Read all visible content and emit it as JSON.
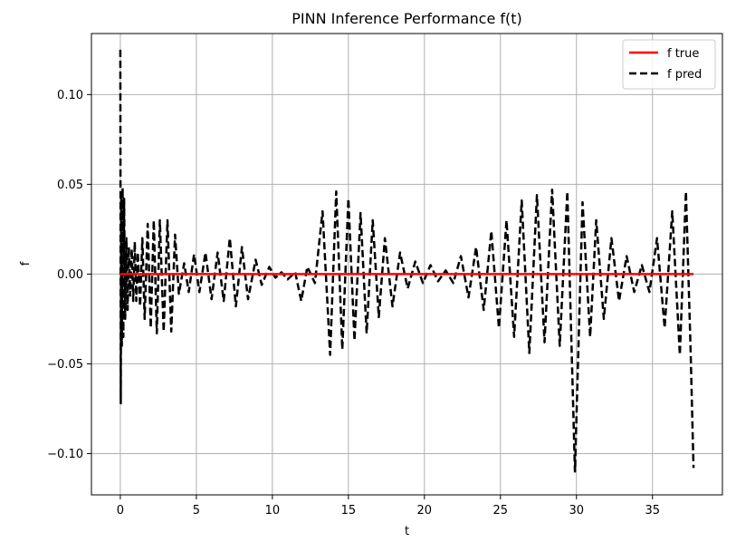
{
  "chart_data": {
    "type": "line",
    "title": "PINN Inference Performance f(t)",
    "xlabel": "t",
    "ylabel": "f",
    "xlim": [
      -1.9,
      39.6
    ],
    "ylim": [
      -0.123,
      0.134
    ],
    "xticks": [
      0,
      5,
      10,
      15,
      20,
      25,
      30,
      35
    ],
    "xtick_labels": [
      "0",
      "5",
      "10",
      "15",
      "20",
      "25",
      "30",
      "35"
    ],
    "yticks": [
      -0.1,
      -0.05,
      0.0,
      0.05,
      0.1
    ],
    "ytick_labels": [
      "−0.10",
      "−0.05",
      "0.00",
      "0.05",
      "0.10"
    ],
    "grid": true,
    "legend_position": "top-right",
    "series": [
      {
        "name": "f true",
        "color": "#ff0000",
        "style": "solid",
        "x": [
          0,
          37.7
        ],
        "y": [
          0,
          0
        ]
      },
      {
        "name": "f pred",
        "color": "#000000",
        "style": "dashed",
        "x": [
          0,
          0.03,
          0.06,
          0.1,
          0.15,
          0.2,
          0.25,
          0.32,
          0.4,
          0.48,
          0.56,
          0.65,
          0.75,
          0.85,
          0.95,
          1.05,
          1.15,
          1.3,
          1.45,
          1.6,
          1.8,
          2.0,
          2.2,
          2.4,
          2.6,
          2.85,
          3.1,
          3.35,
          3.6,
          3.85,
          4.2,
          4.5,
          4.85,
          5.2,
          5.6,
          6.0,
          6.4,
          6.8,
          7.2,
          7.6,
          8.0,
          8.4,
          8.9,
          9.3,
          9.8,
          10.2,
          10.6,
          11.0,
          11.5,
          11.9,
          12.3,
          12.8,
          13.3,
          13.8,
          14.2,
          14.6,
          15.0,
          15.4,
          15.8,
          16.2,
          16.6,
          17.0,
          17.4,
          17.9,
          18.4,
          18.9,
          19.4,
          19.9,
          20.4,
          20.9,
          21.4,
          21.9,
          22.4,
          22.9,
          23.4,
          23.9,
          24.4,
          24.9,
          25.4,
          25.9,
          26.4,
          26.9,
          27.4,
          27.9,
          28.4,
          28.9,
          29.4,
          29.9,
          30.4,
          30.9,
          31.3,
          31.8,
          32.3,
          32.8,
          33.3,
          33.8,
          34.3,
          34.8,
          35.3,
          35.8,
          36.3,
          36.8,
          37.2,
          37.5,
          37.7
        ],
        "y": [
          0.125,
          -0.072,
          0.046,
          -0.04,
          0.048,
          -0.035,
          0.042,
          -0.025,
          0.02,
          -0.02,
          0.015,
          -0.012,
          0.014,
          -0.015,
          0.018,
          -0.015,
          0.012,
          -0.018,
          0.02,
          -0.025,
          0.028,
          -0.03,
          0.03,
          -0.033,
          0.03,
          -0.032,
          0.03,
          -0.032,
          0.022,
          -0.011,
          0.006,
          -0.01,
          0.011,
          -0.01,
          0.012,
          -0.014,
          0.012,
          -0.015,
          0.02,
          -0.018,
          0.015,
          -0.014,
          0.008,
          -0.006,
          0.004,
          -0.002,
          0.001,
          -0.003,
          0.001,
          -0.015,
          0.004,
          -0.005,
          0.035,
          -0.045,
          0.046,
          -0.042,
          0.042,
          -0.037,
          0.034,
          -0.033,
          0.03,
          -0.024,
          0.02,
          -0.018,
          0.012,
          -0.008,
          0.007,
          -0.005,
          0.005,
          -0.004,
          0.002,
          -0.005,
          0.01,
          -0.013,
          0.015,
          -0.02,
          0.024,
          -0.03,
          0.03,
          -0.035,
          0.041,
          -0.044,
          0.044,
          -0.038,
          0.047,
          -0.04,
          0.046,
          -0.11,
          0.04,
          -0.035,
          0.03,
          -0.025,
          0.02,
          -0.015,
          0.01,
          -0.01,
          0.005,
          -0.01,
          0.02,
          -0.03,
          0.035,
          -0.045,
          0.046,
          -0.04,
          -0.108
        ]
      }
    ]
  }
}
